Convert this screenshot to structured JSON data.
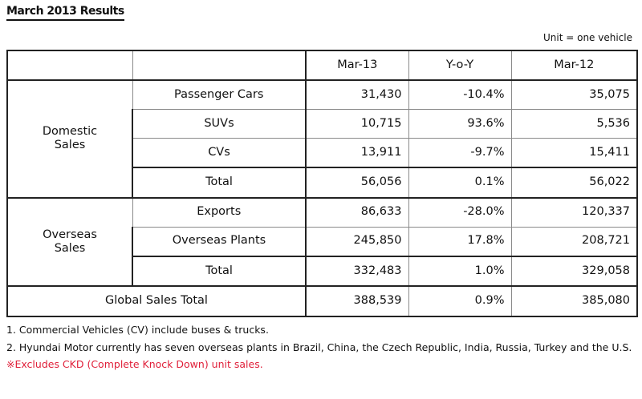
{
  "title": "March 2013 Results",
  "unit": "Unit = one vehicle",
  "columns": [
    "Mar-13",
    "Y-o-Y",
    "Mar-12"
  ],
  "domestic": {
    "label_line1": "Domestic",
    "label_line2": "Sales",
    "rows": [
      {
        "label": "Passenger Cars",
        "mar13": "31,430",
        "yoy": "-10.4%",
        "mar12": "35,075"
      },
      {
        "label": "SUVs",
        "mar13": "10,715",
        "yoy": "93.6%",
        "mar12": "5,536"
      },
      {
        "label": "CVs",
        "mar13": "13,911",
        "yoy": "-9.7%",
        "mar12": "15,411"
      },
      {
        "label": "Total",
        "mar13": "56,056",
        "yoy": "0.1%",
        "mar12": "56,022"
      }
    ]
  },
  "overseas": {
    "label_line1": "Overseas",
    "label_line2": "Sales",
    "rows": [
      {
        "label": "Exports",
        "mar13": "86,633",
        "yoy": "-28.0%",
        "mar12": "120,337"
      },
      {
        "label": "Overseas Plants",
        "mar13": "245,850",
        "yoy": "17.8%",
        "mar12": "208,721"
      },
      {
        "label": "Total",
        "mar13": "332,483",
        "yoy": "1.0%",
        "mar12": "329,058"
      }
    ]
  },
  "global": {
    "label": "Global Sales Total",
    "mar13": "388,539",
    "yoy": "0.9%",
    "mar12": "385,080"
  },
  "notes": {
    "note1": "1. Commercial Vehicles (CV) include buses & trucks.",
    "note2": "2. Hyundai Motor currently has seven overseas plants in Brazil, China, the Czech Republic, India, Russia, Turkey and the U.S.",
    "note3": "※Excludes CKD (Complete Knock Down) unit sales."
  },
  "colors": {
    "note_red": "#e0203a"
  }
}
